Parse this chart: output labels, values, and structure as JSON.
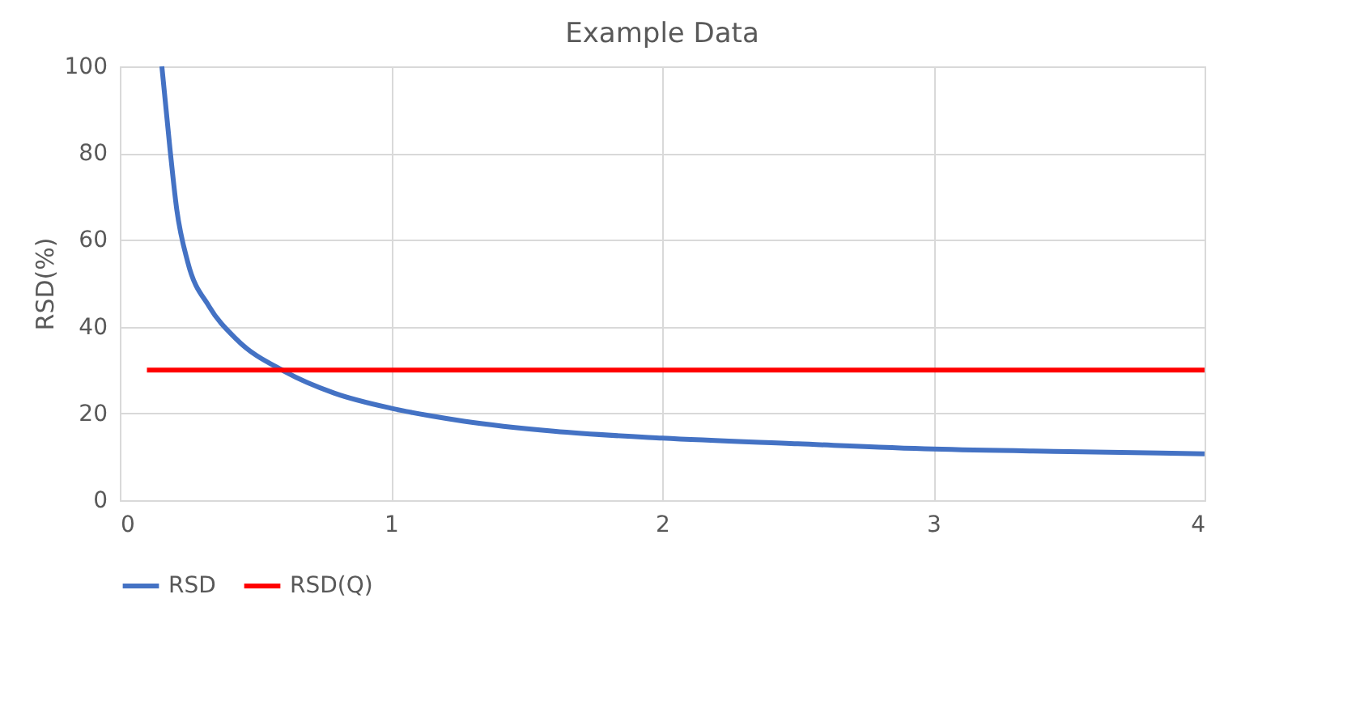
{
  "chart_data": {
    "type": "line",
    "title": "Example Data",
    "ylabel": "RSD(%)",
    "xlim": [
      0,
      4
    ],
    "xticks": [
      0,
      1,
      2,
      3,
      4
    ],
    "ylim": [
      0,
      100
    ],
    "yticks": [
      0,
      20,
      40,
      60,
      80,
      100
    ],
    "grid": true,
    "legend": "bottom",
    "marker": "none",
    "line_style": "solid",
    "series": [
      {
        "name": "RSD",
        "color": "#4472c4",
        "x": [
          0.155,
          0.185,
          0.21,
          0.25,
          0.33,
          0.43,
          0.61,
          0.79,
          1.0,
          1.15,
          1.27,
          1.6,
          2.0,
          2.5,
          3.0,
          3.5,
          4.0
        ],
        "values": [
          100,
          81,
          67,
          55,
          44.6,
          37.1,
          29.6,
          24.7,
          21.2,
          19.4,
          18.2,
          15.9,
          14.3,
          13,
          11.8,
          11.2,
          10.7
        ]
      },
      {
        "name": "RSD(Q)",
        "color": "#ff0000",
        "x": [
          0.1,
          4.0
        ],
        "values": [
          30,
          30
        ]
      }
    ]
  }
}
